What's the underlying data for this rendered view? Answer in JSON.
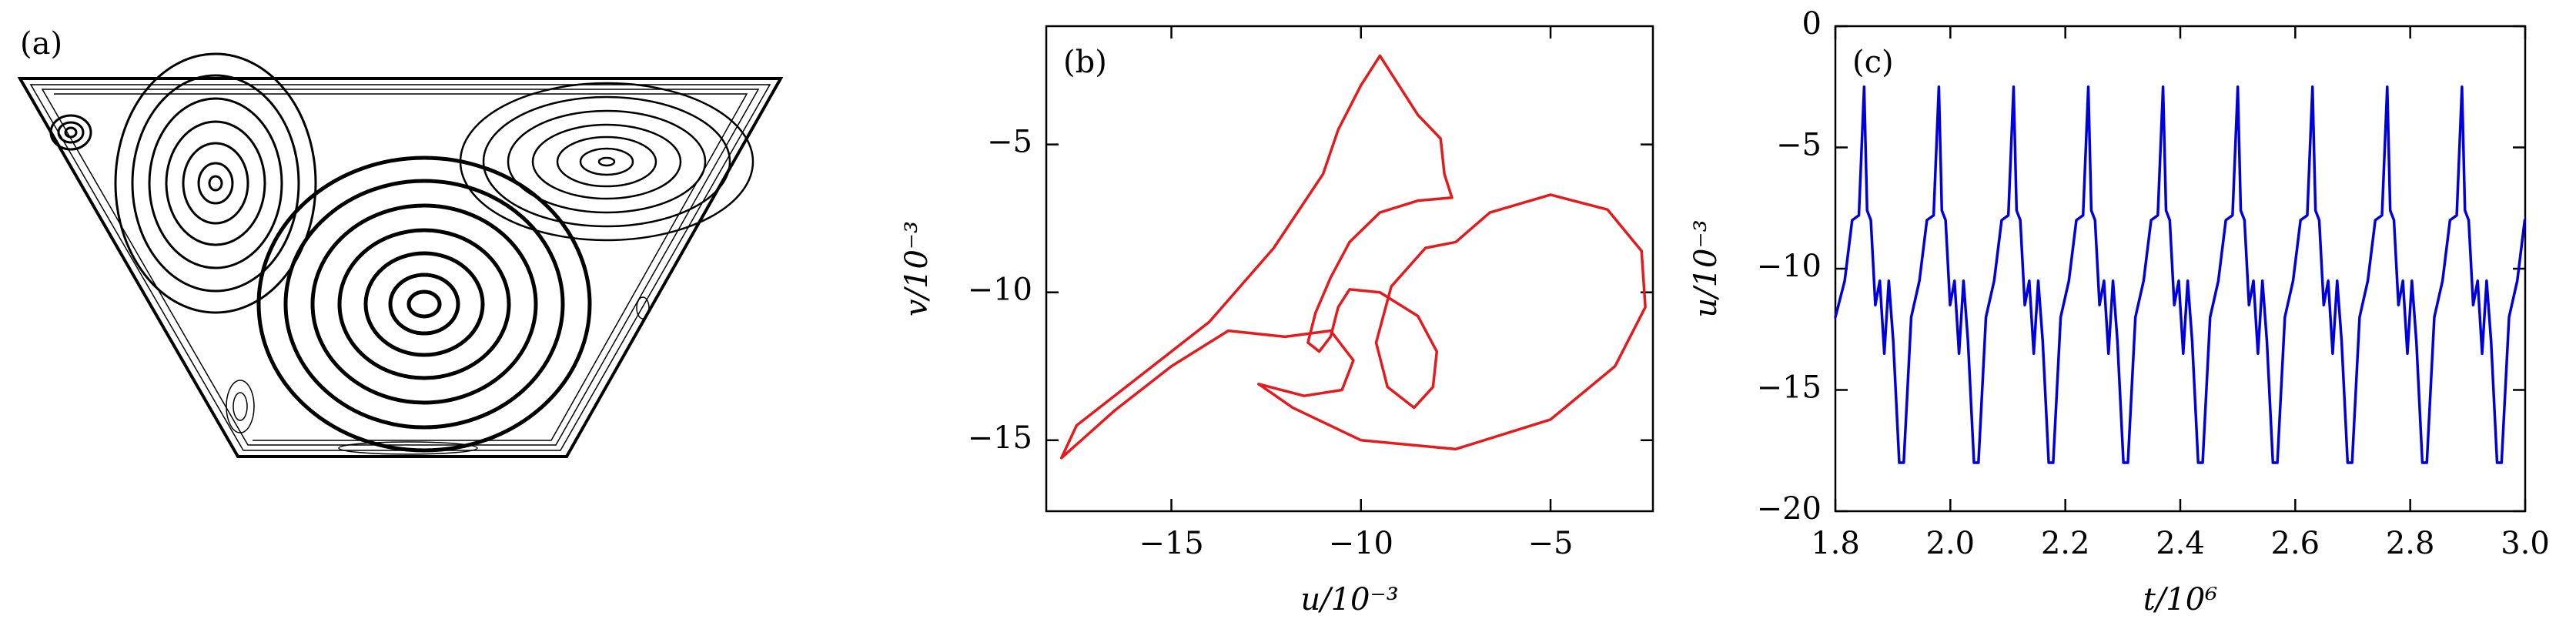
{
  "chart_data": [
    {
      "type": "streamlines",
      "label": "(a)"
    },
    {
      "type": "line",
      "label": "(b)",
      "x_label": "u/10⁻³",
      "y_label": "v/10⁻³",
      "x": [
        -9.5,
        -9.0,
        -8.5,
        -7.9,
        -7.8,
        -7.6,
        -8.5,
        -9.5,
        -10.3,
        -10.8,
        -11.2,
        -11.4,
        -11.1,
        -10.8,
        -10.6,
        -10.3,
        -9.5,
        -8.5,
        -8.0,
        -8.1,
        -8.6,
        -9.3,
        -9.6,
        -9.2,
        -8.3,
        -7.5,
        -6.6,
        -5.0,
        -3.5,
        -2.6,
        -2.5,
        -3.3,
        -5.0,
        -7.5,
        -10.0,
        -11.8,
        -12.7,
        -11.5,
        -10.5,
        -10.2,
        -10.8,
        -12.0,
        -13.5,
        -15.0,
        -16.5,
        -17.9,
        -17.5,
        -16.0,
        -14.0,
        -12.3,
        -11.0,
        -10.6,
        -10.0,
        -9.5
      ],
      "series": [
        {
          "color": "#e41a1c",
          "values": [
            -2.0,
            -3.0,
            -4.0,
            -4.8,
            -6.0,
            -6.8,
            -6.9,
            -7.3,
            -8.3,
            -9.5,
            -10.7,
            -11.7,
            -12.0,
            -11.5,
            -10.5,
            -9.9,
            -10.0,
            -10.8,
            -12.0,
            -13.2,
            -13.9,
            -13.2,
            -11.7,
            -9.8,
            -8.5,
            -8.3,
            -7.3,
            -6.7,
            -7.2,
            -8.6,
            -10.5,
            -12.5,
            -14.3,
            -15.3,
            -15.0,
            -13.9,
            -13.1,
            -13.5,
            -13.3,
            -12.3,
            -11.3,
            -11.5,
            -11.3,
            -12.5,
            -14.0,
            -15.6,
            -14.5,
            -13.0,
            -11.0,
            -8.5,
            -6.0,
            -4.5,
            -3.0,
            -2.0
          ]
        }
      ],
      "xlim": [
        -18.3,
        -2.3
      ],
      "ylim": [
        -17.4,
        -1
      ],
      "xticks": [
        {
          "value": -15,
          "label": "−15"
        },
        {
          "value": -10,
          "label": "−10"
        },
        {
          "value": -5,
          "label": "−5"
        }
      ],
      "yticks": [
        {
          "value": -15,
          "label": "−15"
        },
        {
          "value": -10,
          "label": "−10"
        },
        {
          "value": -5,
          "label": "−5"
        }
      ]
    },
    {
      "type": "line",
      "label": "(c)",
      "x_label": "t/10⁶",
      "y_label": "u/10⁻³",
      "x": [
        1.8,
        1.8162,
        1.8292,
        1.8409,
        1.85,
        1.8552,
        1.8617,
        1.8695,
        1.8773,
        1.8851,
        1.8929,
        1.9007,
        1.9111,
        1.9189,
        1.9319,
        1.9462,
        1.9592,
        1.9709,
        1.98,
        1.9852,
        1.9917,
        1.9995,
        2.0073,
        2.0151,
        2.0229,
        2.0307,
        2.0411,
        2.0489,
        2.0619,
        2.0762,
        2.0892,
        2.1009,
        2.11,
        2.1152,
        2.1217,
        2.1295,
        2.1373,
        2.1451,
        2.1529,
        2.1607,
        2.1711,
        2.1789,
        2.1919,
        2.2062,
        2.2192,
        2.2309,
        2.24,
        2.2452,
        2.2517,
        2.2595,
        2.2673,
        2.2751,
        2.2829,
        2.2907,
        2.3011,
        2.3089,
        2.3219,
        2.3362,
        2.3492,
        2.3609,
        2.37,
        2.3752,
        2.3817,
        2.3895,
        2.3973,
        2.4051,
        2.4129,
        2.4207,
        2.4311,
        2.4389,
        2.4519,
        2.4662,
        2.4792,
        2.4909,
        2.5,
        2.5052,
        2.5117,
        2.5195,
        2.5273,
        2.5351,
        2.5429,
        2.5507,
        2.5611,
        2.5689,
        2.5819,
        2.5962,
        2.6092,
        2.6209,
        2.63,
        2.6352,
        2.6417,
        2.6495,
        2.6573,
        2.6651,
        2.6729,
        2.6807,
        2.6911,
        2.6989,
        2.7119,
        2.7262,
        2.7392,
        2.7509,
        2.76,
        2.7652,
        2.7717,
        2.7795,
        2.7873,
        2.7951,
        2.8029,
        2.8107,
        2.8211,
        2.8289,
        2.8419,
        2.8562,
        2.8692,
        2.8809,
        2.89,
        2.8952,
        2.9017,
        2.9095,
        2.9173,
        2.9251,
        2.9329,
        2.9407,
        2.9511,
        2.9589,
        2.9719,
        2.9862,
        2.9992
      ],
      "series": [
        {
          "color": "#0000dd",
          "values": [
            -12.0,
            -10.5,
            -8.0,
            -7.8,
            -2.5,
            -7.6,
            -8.0,
            -11.5,
            -10.5,
            -13.5,
            -10.5,
            -13.0,
            -18.0,
            -18.0,
            -12.0,
            -10.5,
            -8.0,
            -7.8,
            -2.5,
            -7.6,
            -8.0,
            -11.5,
            -10.5,
            -13.5,
            -10.5,
            -13.0,
            -18.0,
            -18.0,
            -12.0,
            -10.5,
            -8.0,
            -7.8,
            -2.5,
            -7.6,
            -8.0,
            -11.5,
            -10.5,
            -13.5,
            -10.5,
            -13.0,
            -18.0,
            -18.0,
            -12.0,
            -10.5,
            -8.0,
            -7.8,
            -2.5,
            -7.6,
            -8.0,
            -11.5,
            -10.5,
            -13.5,
            -10.5,
            -13.0,
            -18.0,
            -18.0,
            -12.0,
            -10.5,
            -8.0,
            -7.8,
            -2.5,
            -7.6,
            -8.0,
            -11.5,
            -10.5,
            -13.5,
            -10.5,
            -13.0,
            -18.0,
            -18.0,
            -12.0,
            -10.5,
            -8.0,
            -7.8,
            -2.5,
            -7.6,
            -8.0,
            -11.5,
            -10.5,
            -13.5,
            -10.5,
            -13.0,
            -18.0,
            -18.0,
            -12.0,
            -10.5,
            -8.0,
            -7.8,
            -2.5,
            -7.6,
            -8.0,
            -11.5,
            -10.5,
            -13.5,
            -10.5,
            -13.0,
            -18.0,
            -18.0,
            -12.0,
            -10.5,
            -8.0,
            -7.8,
            -2.5,
            -7.6,
            -8.0,
            -11.5,
            -10.5,
            -13.5,
            -10.5,
            -13.0,
            -18.0,
            -18.0,
            -12.0,
            -10.5,
            -8.0,
            -7.8,
            -2.5,
            -7.6,
            -8.0,
            -11.5,
            -10.5,
            -13.5,
            -10.5,
            -13.0,
            -18.0,
            -18.0,
            -12.0,
            -10.5,
            -8.0
          ]
        }
      ],
      "xlim": [
        1.8,
        3.0
      ],
      "ylim": [
        -20,
        0
      ],
      "xticks": [
        1.8,
        {
          "value": 2.0,
          "label": "2.0"
        },
        2.2,
        2.4,
        2.6,
        2.8,
        {
          "value": 3.0,
          "label": "3.0"
        }
      ],
      "yticks": [
        0,
        {
          "value": -5,
          "label": "−5"
        },
        {
          "value": -10,
          "label": "−10"
        },
        {
          "value": -15,
          "label": "−15"
        },
        {
          "value": -20,
          "label": "−20"
        }
      ]
    }
  ]
}
